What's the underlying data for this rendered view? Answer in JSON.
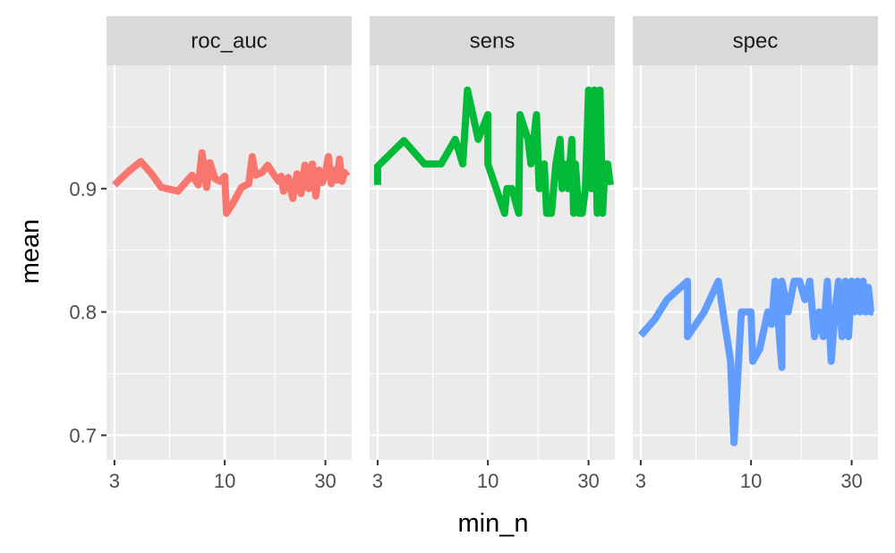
{
  "chart_data": {
    "type": "line",
    "facets": [
      "roc_auc",
      "sens",
      "spec"
    ],
    "xlabel": "min_n",
    "ylabel": "mean",
    "x_scale": "log10",
    "x_ticks": [
      3,
      10,
      30
    ],
    "x_tick_labels": [
      "3",
      "10",
      "30"
    ],
    "xlim": [
      2.75,
      40
    ],
    "y_ticks": [
      0.7,
      0.8,
      0.9
    ],
    "y_tick_labels": [
      "0.7",
      "0.8",
      "0.9"
    ],
    "ylim": [
      0.68,
      1.0
    ],
    "grid": true,
    "legend": "none",
    "series": [
      {
        "facet": "roc_auc",
        "color": "#F8766D",
        "points": [
          [
            3,
            0.903
          ],
          [
            3.5,
            0.914
          ],
          [
            4,
            0.922
          ],
          [
            4.5,
            0.912
          ],
          [
            5,
            0.901
          ],
          [
            6,
            0.898
          ],
          [
            7,
            0.911
          ],
          [
            7.5,
            0.903
          ],
          [
            7.8,
            0.929
          ],
          [
            8.2,
            0.901
          ],
          [
            8.5,
            0.921
          ],
          [
            9,
            0.908
          ],
          [
            9.5,
            0.906
          ],
          [
            10,
            0.91
          ],
          [
            10.2,
            0.88
          ],
          [
            11,
            0.889
          ],
          [
            12,
            0.901
          ],
          [
            13,
            0.904
          ],
          [
            13.5,
            0.926
          ],
          [
            14,
            0.911
          ],
          [
            15,
            0.913
          ],
          [
            16,
            0.919
          ],
          [
            17,
            0.912
          ],
          [
            18,
            0.906
          ],
          [
            18.5,
            0.91
          ],
          [
            19,
            0.898
          ],
          [
            20,
            0.909
          ],
          [
            20.5,
            0.9
          ],
          [
            21,
            0.892
          ],
          [
            22,
            0.912
          ],
          [
            23,
            0.896
          ],
          [
            24,
            0.919
          ],
          [
            25,
            0.9
          ],
          [
            26,
            0.92
          ],
          [
            27,
            0.894
          ],
          [
            28,
            0.915
          ],
          [
            29,
            0.905
          ],
          [
            30,
            0.912
          ],
          [
            31,
            0.926
          ],
          [
            32,
            0.904
          ],
          [
            33,
            0.915
          ],
          [
            34,
            0.907
          ],
          [
            35,
            0.924
          ],
          [
            36,
            0.906
          ],
          [
            37,
            0.913
          ],
          [
            38,
            0.91
          ]
        ]
      },
      {
        "facet": "sens",
        "color": "#00BA38",
        "points": [
          [
            3,
            0.903
          ],
          [
            3,
            0.918
          ],
          [
            4,
            0.939
          ],
          [
            5,
            0.92
          ],
          [
            6,
            0.92
          ],
          [
            7,
            0.94
          ],
          [
            7.6,
            0.92
          ],
          [
            8,
            0.98
          ],
          [
            9,
            0.94
          ],
          [
            10,
            0.96
          ],
          [
            10,
            0.92
          ],
          [
            12,
            0.88
          ],
          [
            12.3,
            0.9
          ],
          [
            13,
            0.9
          ],
          [
            14,
            0.88
          ],
          [
            14.2,
            0.96
          ],
          [
            15.5,
            0.94
          ],
          [
            16,
            0.92
          ],
          [
            17,
            0.96
          ],
          [
            17.5,
            0.9
          ],
          [
            18.5,
            0.92
          ],
          [
            19,
            0.88
          ],
          [
            20,
            0.88
          ],
          [
            21,
            0.92
          ],
          [
            22,
            0.94
          ],
          [
            22.5,
            0.9
          ],
          [
            23,
            0.92
          ],
          [
            24,
            0.9
          ],
          [
            25,
            0.94
          ],
          [
            25.5,
            0.88
          ],
          [
            26,
            0.92
          ],
          [
            27,
            0.88
          ],
          [
            28,
            0.88
          ],
          [
            29,
            0.9
          ],
          [
            30,
            0.98
          ],
          [
            31,
            0.9
          ],
          [
            32,
            0.98
          ],
          [
            33,
            0.88
          ],
          [
            34,
            0.98
          ],
          [
            35,
            0.88
          ],
          [
            36,
            0.92
          ],
          [
            37,
            0.92
          ],
          [
            38,
            0.903
          ]
        ]
      },
      {
        "facet": "spec",
        "color": "#619CFF",
        "points": [
          [
            3,
            0.781
          ],
          [
            3.5,
            0.794
          ],
          [
            4,
            0.81
          ],
          [
            4.5,
            0.818
          ],
          [
            5,
            0.825
          ],
          [
            5,
            0.78
          ],
          [
            6,
            0.8
          ],
          [
            7,
            0.825
          ],
          [
            8,
            0.76
          ],
          [
            8.3,
            0.694
          ],
          [
            9,
            0.8
          ],
          [
            10,
            0.8
          ],
          [
            10.2,
            0.76
          ],
          [
            11,
            0.77
          ],
          [
            12,
            0.8
          ],
          [
            12.5,
            0.79
          ],
          [
            13,
            0.825
          ],
          [
            14,
            0.755
          ],
          [
            14,
            0.825
          ],
          [
            15,
            0.8
          ],
          [
            16,
            0.825
          ],
          [
            17,
            0.825
          ],
          [
            18,
            0.81
          ],
          [
            19,
            0.825
          ],
          [
            20,
            0.78
          ],
          [
            21,
            0.8
          ],
          [
            22,
            0.78
          ],
          [
            23,
            0.825
          ],
          [
            24,
            0.76
          ],
          [
            25,
            0.8
          ],
          [
            26,
            0.825
          ],
          [
            27,
            0.78
          ],
          [
            28,
            0.825
          ],
          [
            29,
            0.78
          ],
          [
            30,
            0.825
          ],
          [
            31,
            0.8
          ],
          [
            32,
            0.825
          ],
          [
            33,
            0.8
          ],
          [
            34,
            0.825
          ],
          [
            35,
            0.8
          ],
          [
            36,
            0.82
          ],
          [
            37,
            0.8
          ],
          [
            38,
            0.8
          ]
        ]
      }
    ]
  }
}
